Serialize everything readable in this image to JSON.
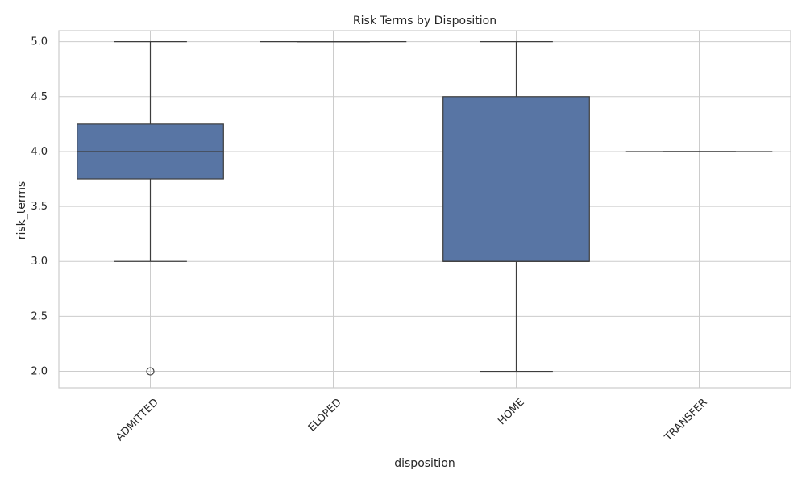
{
  "chart_data": {
    "type": "box",
    "title": "Risk Terms by Disposition",
    "xlabel": "disposition",
    "ylabel": "risk_terms",
    "ylim": [
      1.85,
      5.1
    ],
    "yticks": [
      2.0,
      2.5,
      3.0,
      3.5,
      4.0,
      4.5,
      5.0
    ],
    "ytick_labels": [
      "2.0",
      "2.5",
      "3.0",
      "3.5",
      "4.0",
      "4.5",
      "5.0"
    ],
    "grid": true,
    "categories": [
      "ADMITTED",
      "ELOPED",
      "HOME",
      "TRANSFER"
    ],
    "boxes": [
      {
        "category": "ADMITTED",
        "whisker_low": 3.0,
        "q1": 3.75,
        "median": 4.0,
        "q3": 4.25,
        "whisker_high": 5.0,
        "outliers": [
          2.0
        ]
      },
      {
        "category": "ELOPED",
        "whisker_low": 5.0,
        "q1": 5.0,
        "median": 5.0,
        "q3": 5.0,
        "whisker_high": 5.0,
        "outliers": []
      },
      {
        "category": "HOME",
        "whisker_low": 2.0,
        "q1": 3.0,
        "median": 3.0,
        "q3": 4.5,
        "whisker_high": 5.0,
        "outliers": []
      },
      {
        "category": "TRANSFER",
        "whisker_low": 4.0,
        "q1": 4.0,
        "median": 4.0,
        "q3": 4.0,
        "whisker_high": 4.0,
        "outliers": []
      }
    ],
    "colors": {
      "box_fill": "#5875a4",
      "line": "#3d3d3d",
      "grid": "#cccccc",
      "frame": "#cccccc"
    }
  }
}
